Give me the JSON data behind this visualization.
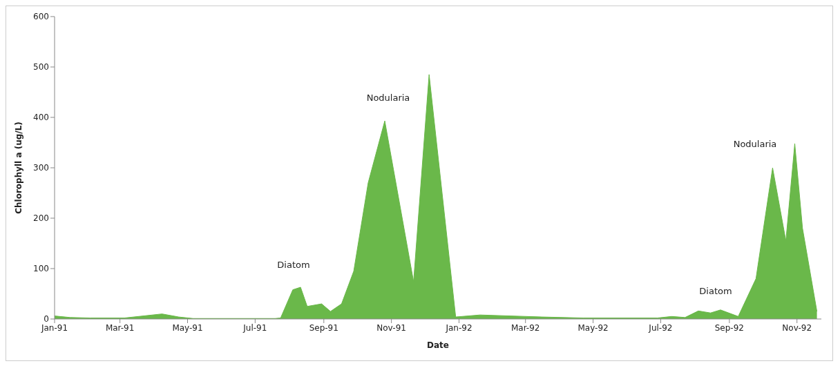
{
  "chart_data": {
    "type": "area",
    "xlabel": "Date",
    "ylabel": "Chlorophyll a (ug/L)",
    "x": [
      "1991-01-01",
      "1991-01-15",
      "1991-02-02",
      "1991-03-05",
      "1991-04-08",
      "1991-04-23",
      "1991-05-06",
      "1991-07-19",
      "1991-07-24",
      "1991-08-04",
      "1991-08-11",
      "1991-08-17",
      "1991-08-30",
      "1991-09-07",
      "1991-09-17",
      "1991-09-28",
      "1991-10-11",
      "1991-10-26",
      "1991-11-21",
      "1991-12-05",
      "1991-12-29",
      "1992-01-20",
      "1992-03-16",
      "1992-04-22",
      "1992-06-28",
      "1992-07-11",
      "1992-07-23",
      "1992-08-04",
      "1992-08-15",
      "1992-08-24",
      "1992-09-09",
      "1992-09-25",
      "1992-10-10",
      "1992-10-22",
      "1992-10-30",
      "1992-11-06",
      "1992-11-19"
    ],
    "series": [
      {
        "color": "#6ab84a",
        "values": [
          6,
          3,
          2,
          2,
          10,
          4,
          1,
          1,
          2,
          58,
          63,
          25,
          30,
          15,
          30,
          95,
          270,
          393,
          74,
          485,
          4,
          8,
          4,
          2,
          2,
          5,
          3,
          16,
          12,
          18,
          5,
          80,
          300,
          155,
          348,
          180,
          15
        ]
      }
    ],
    "xlim": [
      "1991-01-01",
      "1992-11-23"
    ],
    "xticks": [
      {
        "value": "1991-01-01",
        "label": "Jan-91"
      },
      {
        "value": "1991-03-01",
        "label": "Mar-91"
      },
      {
        "value": "1991-05-01",
        "label": "May-91"
      },
      {
        "value": "1991-07-01",
        "label": "Jul-91"
      },
      {
        "value": "1991-09-01",
        "label": "Sep-91"
      },
      {
        "value": "1991-11-01",
        "label": "Nov-91"
      },
      {
        "value": "1992-01-01",
        "label": "Jan-92"
      },
      {
        "value": "1992-03-01",
        "label": "Mar-92"
      },
      {
        "value": "1992-05-01",
        "label": "May-92"
      },
      {
        "value": "1992-07-01",
        "label": "Jul-92"
      },
      {
        "value": "1992-09-01",
        "label": "Sep-92"
      },
      {
        "value": "1992-11-01",
        "label": "Nov-92"
      }
    ],
    "ylim": [
      0,
      600
    ],
    "yticks": [
      0,
      100,
      200,
      300,
      400,
      500,
      600
    ],
    "grid": false,
    "legend": false,
    "annotations": [
      "Diatom",
      "Nodularia",
      "Diatom",
      "Nodularia"
    ]
  }
}
